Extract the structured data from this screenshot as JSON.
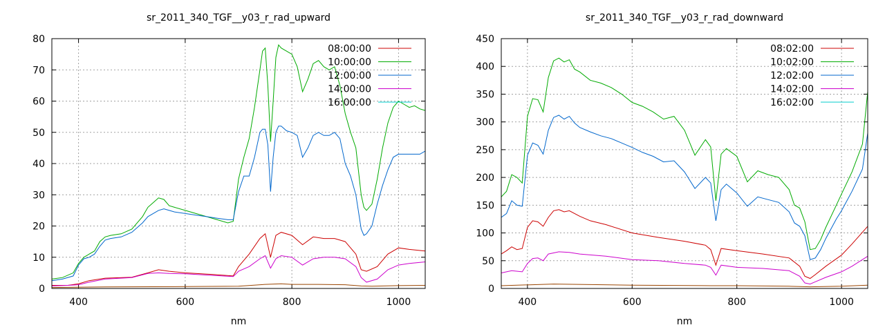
{
  "chart_data": [
    {
      "type": "line",
      "title": "sr_2011_340_TGF__y03_r_rad_upward",
      "xlabel": "nm",
      "ylabel": "",
      "xlim": [
        350,
        1050
      ],
      "ylim": [
        0,
        80
      ],
      "xticks": [
        400,
        600,
        800,
        1000
      ],
      "yticks": [
        0,
        10,
        20,
        30,
        40,
        50,
        60,
        70,
        80
      ],
      "grid": true,
      "legend": "top-right",
      "series": [
        {
          "name": "08:00:00",
          "color": "#cc0000",
          "x": [
            350,
            380,
            400,
            420,
            450,
            500,
            530,
            550,
            570,
            600,
            650,
            690,
            700,
            720,
            740,
            750,
            760,
            770,
            780,
            800,
            820,
            840,
            860,
            880,
            900,
            920,
            930,
            940,
            960,
            980,
            1000,
            1020,
            1050
          ],
          "y": [
            1,
            1,
            1.5,
            2.5,
            3.3,
            3.6,
            5,
            6,
            5.5,
            5,
            4.5,
            4,
            7,
            11,
            16,
            17.5,
            10,
            17,
            18,
            17,
            14,
            16.5,
            16,
            16,
            15,
            11,
            6,
            5.5,
            7,
            11,
            13,
            12.5,
            12
          ]
        },
        {
          "name": "10:00:00",
          "color": "#00aa00",
          "x": [
            350,
            370,
            390,
            400,
            410,
            420,
            430,
            440,
            450,
            460,
            480,
            500,
            520,
            530,
            540,
            550,
            560,
            570,
            580,
            600,
            620,
            640,
            660,
            680,
            690,
            700,
            710,
            720,
            730,
            740,
            745,
            750,
            755,
            760,
            765,
            770,
            775,
            780,
            790,
            800,
            810,
            820,
            830,
            840,
            850,
            860,
            870,
            880,
            890,
            900,
            910,
            920,
            930,
            935,
            940,
            950,
            960,
            970,
            980,
            990,
            1000,
            1010,
            1020,
            1030,
            1040,
            1050
          ],
          "y": [
            3,
            3.5,
            5,
            8,
            10,
            11,
            12,
            15,
            16.5,
            17,
            17.5,
            19,
            23,
            26,
            27.5,
            29,
            28.5,
            26.5,
            26,
            25,
            24,
            23,
            22,
            21,
            21.5,
            35,
            42,
            48,
            58,
            70,
            76,
            77,
            65,
            47,
            60,
            74,
            78,
            77,
            76,
            75,
            71,
            63,
            67,
            72,
            73,
            71,
            70,
            71,
            65,
            56,
            50,
            45,
            30,
            26,
            25,
            27,
            35,
            45,
            53,
            58,
            60,
            59,
            58,
            58.5,
            57.5,
            57
          ]
        },
        {
          "name": "12:00:00",
          "color": "#0066cc",
          "x": [
            350,
            370,
            390,
            400,
            410,
            420,
            430,
            440,
            450,
            460,
            480,
            500,
            520,
            530,
            540,
            550,
            560,
            570,
            580,
            600,
            620,
            640,
            660,
            680,
            690,
            700,
            710,
            720,
            730,
            740,
            745,
            750,
            755,
            760,
            765,
            770,
            775,
            780,
            790,
            800,
            810,
            820,
            830,
            840,
            850,
            860,
            870,
            880,
            890,
            900,
            910,
            920,
            930,
            935,
            940,
            950,
            960,
            970,
            980,
            990,
            1000,
            1010,
            1020,
            1030,
            1040,
            1050
          ],
          "y": [
            2.5,
            3,
            4,
            7.5,
            9.5,
            10,
            11,
            13.5,
            15.5,
            16,
            16.5,
            18,
            21,
            23,
            24,
            25,
            25.5,
            25,
            24.5,
            24,
            23.5,
            23,
            22.5,
            22,
            22,
            31,
            36,
            36,
            42,
            50,
            51,
            51,
            46,
            31,
            42,
            50,
            52,
            52,
            50.5,
            50,
            49,
            42,
            45,
            49,
            50,
            49,
            49,
            50,
            48,
            40,
            36,
            30,
            19,
            17,
            17.5,
            20,
            27,
            33,
            38,
            42,
            43,
            43,
            43,
            43,
            43,
            44
          ]
        },
        {
          "name": "14:00:00",
          "color": "#cc00cc",
          "x": [
            350,
            380,
            400,
            420,
            450,
            500,
            530,
            550,
            570,
            600,
            650,
            690,
            700,
            720,
            740,
            750,
            760,
            770,
            780,
            800,
            820,
            840,
            860,
            880,
            900,
            920,
            930,
            940,
            960,
            980,
            1000,
            1020,
            1050
          ],
          "y": [
            0.8,
            1,
            1.2,
            2,
            3,
            3.5,
            4.8,
            5,
            4.8,
            4.7,
            4.2,
            3.8,
            5.5,
            7,
            9.5,
            10.5,
            6.5,
            9.5,
            10.5,
            10,
            7.5,
            9.5,
            10,
            10,
            9.5,
            7,
            3.5,
            2,
            3,
            6,
            7.5,
            8,
            8.5
          ]
        },
        {
          "name": "16:00:00",
          "color": "#00cccc",
          "x": [
            350,
            1050
          ],
          "y": [
            0,
            0
          ]
        },
        {
          "name": "",
          "color": "#994400",
          "x": [
            350,
            450,
            600,
            700,
            750,
            780,
            800,
            850,
            900,
            930,
            950,
            1000,
            1050
          ],
          "y": [
            0.3,
            0.5,
            0.6,
            0.7,
            1.3,
            1.5,
            1.3,
            1.3,
            1.2,
            0.8,
            0.7,
            0.9,
            1.0
          ]
        }
      ]
    },
    {
      "type": "line",
      "title": "sr_2011_340_TGF__y03_r_rad_downward",
      "xlabel": "nm",
      "ylabel": "",
      "xlim": [
        350,
        1050
      ],
      "ylim": [
        0,
        450
      ],
      "xticks": [
        400,
        600,
        800,
        1000
      ],
      "yticks": [
        0,
        50,
        100,
        150,
        200,
        250,
        300,
        350,
        400,
        450
      ],
      "grid": true,
      "legend": "top-right",
      "series": [
        {
          "name": "08:02:00",
          "color": "#cc0000",
          "x": [
            350,
            360,
            370,
            380,
            390,
            400,
            410,
            420,
            430,
            440,
            450,
            460,
            470,
            480,
            500,
            520,
            550,
            600,
            650,
            700,
            740,
            750,
            760,
            770,
            800,
            850,
            900,
            920,
            930,
            940,
            950,
            970,
            1000,
            1020,
            1050
          ],
          "y": [
            62,
            68,
            75,
            70,
            72,
            110,
            122,
            120,
            112,
            128,
            140,
            142,
            138,
            140,
            130,
            122,
            115,
            100,
            92,
            85,
            78,
            70,
            42,
            72,
            68,
            62,
            55,
            40,
            22,
            18,
            25,
            40,
            60,
            80,
            112
          ]
        },
        {
          "name": "10:02:00",
          "color": "#00aa00",
          "x": [
            350,
            360,
            370,
            380,
            390,
            400,
            410,
            420,
            430,
            440,
            450,
            460,
            470,
            480,
            490,
            500,
            520,
            540,
            560,
            580,
            600,
            620,
            640,
            660,
            680,
            700,
            720,
            740,
            750,
            760,
            770,
            780,
            800,
            820,
            840,
            860,
            880,
            900,
            910,
            920,
            930,
            940,
            950,
            960,
            970,
            990,
            1000,
            1020,
            1040,
            1050
          ],
          "y": [
            165,
            175,
            205,
            200,
            190,
            310,
            342,
            340,
            318,
            380,
            410,
            415,
            408,
            412,
            395,
            390,
            375,
            370,
            362,
            350,
            335,
            328,
            318,
            305,
            310,
            285,
            240,
            268,
            255,
            158,
            242,
            252,
            238,
            192,
            212,
            205,
            200,
            178,
            150,
            145,
            120,
            70,
            72,
            88,
            110,
            150,
            170,
            210,
            260,
            355
          ]
        },
        {
          "name": "12:02:00",
          "color": "#0066cc",
          "x": [
            350,
            360,
            370,
            380,
            390,
            400,
            410,
            420,
            430,
            440,
            450,
            460,
            470,
            480,
            490,
            500,
            520,
            540,
            560,
            580,
            600,
            620,
            640,
            660,
            680,
            700,
            720,
            740,
            750,
            760,
            770,
            780,
            800,
            820,
            840,
            860,
            880,
            900,
            910,
            920,
            930,
            940,
            950,
            960,
            970,
            990,
            1000,
            1020,
            1040,
            1050
          ],
          "y": [
            128,
            135,
            158,
            150,
            148,
            240,
            262,
            258,
            242,
            285,
            308,
            312,
            305,
            310,
            298,
            290,
            282,
            275,
            270,
            262,
            254,
            245,
            238,
            228,
            230,
            210,
            180,
            200,
            190,
            122,
            178,
            188,
            172,
            148,
            165,
            160,
            155,
            138,
            118,
            112,
            95,
            52,
            55,
            70,
            90,
            125,
            140,
            175,
            215,
            280
          ]
        },
        {
          "name": "14:02:00",
          "color": "#cc00cc",
          "x": [
            350,
            370,
            390,
            400,
            410,
            420,
            430,
            440,
            460,
            480,
            500,
            550,
            600,
            650,
            700,
            740,
            750,
            760,
            770,
            800,
            850,
            900,
            920,
            930,
            940,
            950,
            970,
            1000,
            1020,
            1050
          ],
          "y": [
            28,
            32,
            30,
            45,
            54,
            55,
            50,
            62,
            66,
            65,
            62,
            58,
            52,
            50,
            45,
            42,
            38,
            24,
            42,
            38,
            36,
            32,
            22,
            10,
            8,
            12,
            20,
            30,
            40,
            58
          ]
        },
        {
          "name": "16:02:00",
          "color": "#00cccc",
          "x": [
            350,
            1050
          ],
          "y": [
            0,
            0
          ]
        },
        {
          "name": "",
          "color": "#994400",
          "x": [
            350,
            450,
            600,
            750,
            800,
            900,
            940,
            1000,
            1050
          ],
          "y": [
            5,
            8,
            6,
            5,
            5,
            4,
            3,
            4,
            6
          ]
        }
      ]
    }
  ]
}
